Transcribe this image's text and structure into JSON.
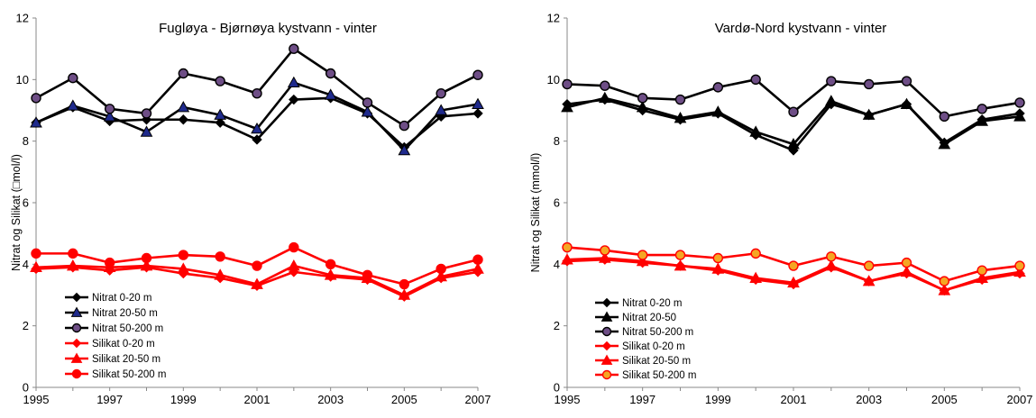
{
  "chart_data": [
    {
      "type": "line",
      "title": "Fugløya - Bjørnøya kystvann - vinter",
      "ylabel": "Nitrat og Silikat (□mol/l)",
      "xlabel": "",
      "ylim": [
        0,
        12
      ],
      "yticks": [
        0,
        2,
        4,
        6,
        8,
        10,
        12
      ],
      "xlim": [
        1995,
        2007
      ],
      "xticks": [
        1995,
        1997,
        1999,
        2001,
        2003,
        2005,
        2007
      ],
      "grid": false,
      "legend_position": "bottom-left",
      "x": [
        1995,
        1996,
        1997,
        1998,
        1999,
        2000,
        2001,
        2002,
        2003,
        2004,
        2005,
        2006,
        2007
      ],
      "series": [
        {
          "name": "Nitrat 0-20 m",
          "marker": "diamond",
          "color": "#000000",
          "fill": "#000000",
          "values": [
            8.6,
            9.1,
            8.65,
            8.7,
            8.7,
            8.6,
            8.05,
            9.35,
            9.4,
            8.9,
            7.8,
            8.8,
            8.9
          ]
        },
        {
          "name": "Nitrat 20-50 m",
          "marker": "triangle",
          "color": "#000000",
          "fill": "#1f2a8c",
          "values": [
            8.6,
            9.15,
            8.8,
            8.3,
            9.1,
            8.85,
            8.4,
            9.9,
            9.5,
            8.95,
            7.7,
            9.0,
            9.2
          ]
        },
        {
          "name": "Nitrat 50-200 m",
          "marker": "circle",
          "color": "#000000",
          "fill": "#6e4e86",
          "values": [
            9.4,
            10.05,
            9.05,
            8.9,
            10.2,
            9.95,
            9.55,
            11.0,
            10.2,
            9.25,
            8.5,
            9.55,
            10.15
          ]
        },
        {
          "name": "Silikat 0-20 m",
          "marker": "diamond",
          "color": "#ff0000",
          "fill": "#ff0000",
          "values": [
            3.85,
            3.9,
            3.8,
            3.9,
            3.7,
            3.55,
            3.3,
            3.75,
            3.6,
            3.5,
            2.95,
            3.55,
            3.75
          ]
        },
        {
          "name": "Silikat 20-50 m",
          "marker": "triangle",
          "color": "#ff0000",
          "fill": "#ff0000",
          "values": [
            3.9,
            3.95,
            3.9,
            3.95,
            3.85,
            3.65,
            3.35,
            3.95,
            3.65,
            3.55,
            3.0,
            3.6,
            3.85
          ]
        },
        {
          "name": "Silikat 50-200 m",
          "marker": "circle",
          "color": "#ff0000",
          "fill": "#ff0000",
          "values": [
            4.35,
            4.35,
            4.05,
            4.2,
            4.3,
            4.25,
            3.95,
            4.55,
            4.0,
            3.65,
            3.35,
            3.85,
            4.15
          ]
        }
      ]
    },
    {
      "type": "line",
      "title": "Vardø-Nord kystvann - vinter",
      "ylabel": "Nitrat og Silikat  (mmol/l)",
      "xlabel": "",
      "ylim": [
        0,
        12
      ],
      "yticks": [
        0,
        2,
        4,
        6,
        8,
        10,
        12
      ],
      "xlim": [
        1995,
        2007
      ],
      "xticks": [
        1995,
        1997,
        1999,
        2001,
        2003,
        2005,
        2007
      ],
      "grid": false,
      "legend_position": "bottom-left",
      "x": [
        1995,
        1996,
        1997,
        1998,
        1999,
        2000,
        2001,
        2002,
        2003,
        2004,
        2005,
        2006,
        2007
      ],
      "series": [
        {
          "name": "Nitrat 0-20 m",
          "marker": "diamond",
          "color": "#000000",
          "fill": "#000000",
          "values": [
            9.2,
            9.35,
            9.0,
            8.7,
            8.9,
            8.2,
            7.7,
            9.2,
            8.85,
            9.2,
            7.95,
            8.7,
            8.9
          ]
        },
        {
          "name": "Nitrat 20-50",
          "marker": "triangle",
          "color": "#000000",
          "fill": "#000000",
          "values": [
            9.1,
            9.4,
            9.1,
            8.75,
            8.95,
            8.3,
            7.9,
            9.3,
            8.85,
            9.2,
            7.9,
            8.65,
            8.8
          ]
        },
        {
          "name": "Nitrat 50-200 m",
          "marker": "circle",
          "color": "#000000",
          "fill": "#6e4e86",
          "values": [
            9.85,
            9.8,
            9.4,
            9.35,
            9.75,
            10.0,
            8.95,
            9.95,
            9.85,
            9.95,
            8.8,
            9.05,
            9.25
          ]
        },
        {
          "name": "Silikat 0-20 m",
          "marker": "diamond",
          "color": "#ff0000",
          "fill": "#ff0000",
          "values": [
            4.1,
            4.15,
            4.05,
            3.95,
            3.8,
            3.5,
            3.35,
            3.9,
            3.45,
            3.7,
            3.15,
            3.5,
            3.7
          ]
        },
        {
          "name": "Silikat 20-50 m",
          "marker": "triangle",
          "color": "#ff0000",
          "fill": "#ff0000",
          "values": [
            4.15,
            4.2,
            4.1,
            3.95,
            3.85,
            3.55,
            3.4,
            3.95,
            3.45,
            3.75,
            3.15,
            3.55,
            3.75
          ]
        },
        {
          "name": "Silikat 50-200 m",
          "marker": "circle",
          "color": "#ff0000",
          "fill": "#f5a623",
          "values": [
            4.55,
            4.45,
            4.3,
            4.3,
            4.2,
            4.35,
            3.95,
            4.25,
            3.95,
            4.05,
            3.45,
            3.8,
            3.95
          ]
        }
      ]
    }
  ]
}
